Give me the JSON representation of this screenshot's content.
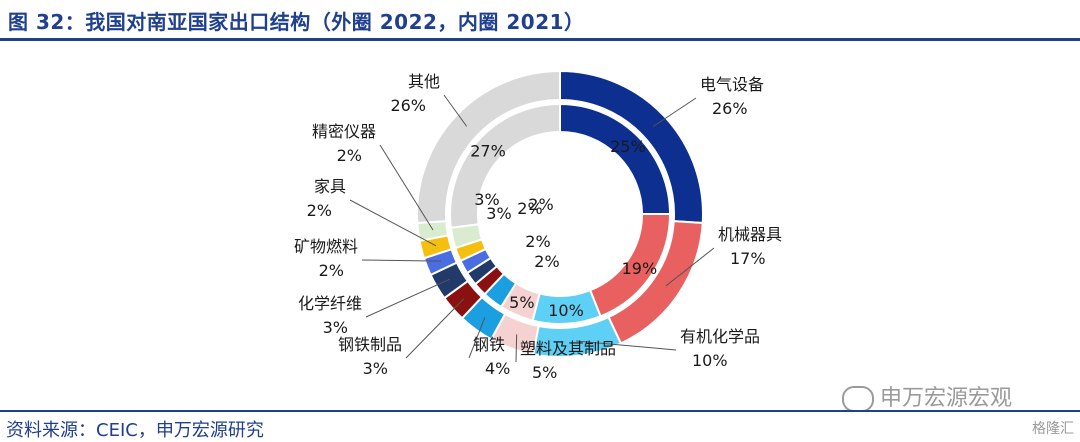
{
  "header": {
    "title": "图 32：我国对南亚国家出口结构（外圈 2022，内圈 2021）"
  },
  "footer": {
    "source": "资料来源：CEIC，申万宏源研究"
  },
  "watermark": {
    "text": "申万宏源宏观",
    "corner": "格隆汇"
  },
  "chart_data": {
    "type": "pie",
    "subtype": "double-donut",
    "categories": [
      "电气设备",
      "机械器具",
      "有机化学品",
      "塑料及其制品",
      "钢铁",
      "钢铁制品",
      "化学纤维",
      "矿物燃料",
      "家具",
      "精密仪器",
      "其他"
    ],
    "colors": [
      "#0d2f8f",
      "#e96060",
      "#5fd0f5",
      "#f6d1d1",
      "#1b9fe0",
      "#8b1010",
      "#223a6a",
      "#4a6ee0",
      "#f5bf10",
      "#d9ecd0",
      "#d9d9d9"
    ],
    "series": [
      {
        "name": "2022",
        "values": [
          26,
          17,
          10,
          5,
          4,
          3,
          3,
          2,
          2,
          2,
          26
        ]
      },
      {
        "name": "2021",
        "values": [
          25,
          19,
          10,
          5,
          3,
          2,
          2,
          2,
          2,
          3,
          27
        ]
      }
    ],
    "outer_labels": [
      "电气设备\n26%",
      "机械器具\n17%",
      "有机化学品\n10%",
      "塑料及其制品\n5%",
      "钢铁\n4%",
      "钢铁制品\n3%",
      "化学纤维\n3%",
      "矿物燃料\n2%",
      "家具\n2%",
      "精密仪器\n2%",
      "其他\n26%"
    ],
    "inner_labels": [
      "25%",
      "19%",
      "10%",
      "5%",
      "3%",
      "2%",
      "2%",
      "2%",
      "2%",
      "3%",
      "27%"
    ]
  }
}
